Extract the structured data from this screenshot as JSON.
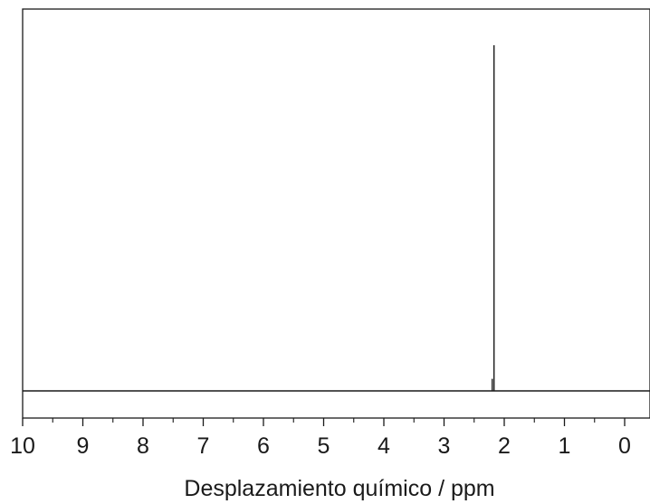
{
  "chart_data": {
    "type": "line",
    "title": "",
    "xlabel": "Desplazamiento químico / ppm",
    "ylabel": "",
    "xlim": [
      10,
      -0.4
    ],
    "x_reversed": true,
    "ylim": [
      0,
      1
    ],
    "grid": false,
    "legend": "none",
    "x_ticks_major": [
      10,
      9,
      8,
      7,
      6,
      5,
      4,
      3,
      2,
      1,
      0
    ],
    "x_tick_labels": [
      "10",
      "9",
      "8",
      "7",
      "6",
      "5",
      "4",
      "3",
      "2",
      "1",
      "0"
    ],
    "x_ticks_minor": [
      9.5,
      8.5,
      7.5,
      6.5,
      5.5,
      4.5,
      3.5,
      2.5,
      1.5,
      0.5
    ],
    "series": [
      {
        "peaks": [
          {
            "ppm": 2.17,
            "intensity": 1.0
          },
          {
            "ppm": 2.2,
            "intensity": 0.035
          }
        ]
      }
    ],
    "colors": {
      "line": "#1a1a1a",
      "frame": "#1a1a1a"
    }
  }
}
